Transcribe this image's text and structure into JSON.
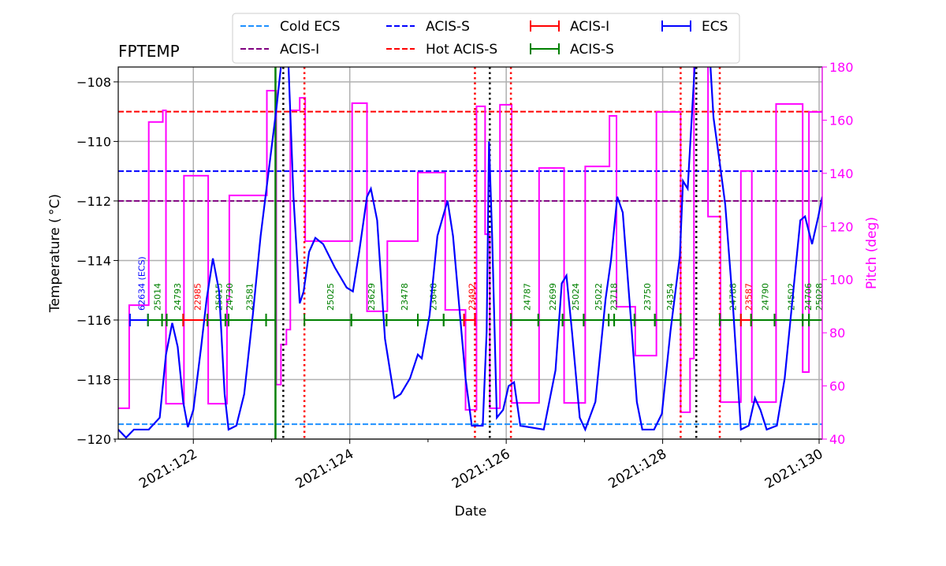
{
  "chart_data": {
    "type": "line",
    "title": "FPTEMP",
    "xlabel": "Date",
    "ylabel": "Temperature ($^\\circ$C)",
    "ylabel_display": "Temperature ( °C)",
    "y2label": "Pitch (deg)",
    "xlim": [
      121.04,
      130.04
    ],
    "ylim": [
      -120,
      -107.5
    ],
    "y2lim": [
      40,
      180
    ],
    "grid": true,
    "legend_placement": "top-center, above plot",
    "x_ticks": [
      {
        "value": 122,
        "label": "2021:122"
      },
      {
        "value": 124,
        "label": "2021:124"
      },
      {
        "value": 126,
        "label": "2021:126"
      },
      {
        "value": 128,
        "label": "2021:128"
      },
      {
        "value": 130,
        "label": "2021:130"
      }
    ],
    "x_minor_ticks": [
      121,
      123,
      125,
      127,
      129
    ],
    "y_ticks": [
      -120,
      -118,
      -116,
      -114,
      -112,
      -110,
      -108
    ],
    "y2_ticks": [
      40,
      60,
      80,
      100,
      120,
      140,
      160,
      180
    ],
    "colors": {
      "temperature": "#0000ff",
      "pitch": "#ff00ff",
      "cold_ecs": "#1e90ff",
      "acis_i_limit": "#800080",
      "acis_s_limit": "#0000ff",
      "hot_acis_s": "#ff0000",
      "acis_i_obs": "#ff0000",
      "acis_s_obs": "#008000",
      "ecs_obs": "#0000ff",
      "axis_right": "#ff00ff"
    },
    "limit_lines": [
      {
        "name": "Cold ECS",
        "value": -119.5,
        "color": "#1e90ff"
      },
      {
        "name": "ACIS-I",
        "value": -112,
        "color": "#800080"
      },
      {
        "name": "ACIS-S",
        "value": -111,
        "color": "#0000ff"
      },
      {
        "name": "Hot ACIS-S",
        "value": -109,
        "color": "#ff0000"
      }
    ],
    "legend": [
      {
        "label": "Cold ECS",
        "style": "dashed",
        "color": "#1e90ff"
      },
      {
        "label": "ACIS-I",
        "style": "dashed",
        "color": "#800080"
      },
      {
        "label": "ACIS-S",
        "style": "dashed",
        "color": "#0000ff"
      },
      {
        "label": "Hot ACIS-S",
        "style": "dashed",
        "color": "#ff0000"
      },
      {
        "label": "ACIS-I",
        "style": "errorbar",
        "color": "#ff0000"
      },
      {
        "label": "ACIS-S",
        "style": "errorbar",
        "color": "#008000"
      },
      {
        "label": "ECS",
        "style": "errorbar",
        "color": "#0000ff"
      }
    ],
    "temperature": [
      [
        121.04,
        -119.68
      ],
      [
        121.14,
        -119.95
      ],
      [
        121.24,
        -119.68
      ],
      [
        121.43,
        -119.68
      ],
      [
        121.57,
        -119.28
      ],
      [
        121.65,
        -117.16
      ],
      [
        121.73,
        -116.1
      ],
      [
        121.8,
        -116.9
      ],
      [
        121.87,
        -118.75
      ],
      [
        121.93,
        -119.6
      ],
      [
        122.0,
        -119.02
      ],
      [
        122.1,
        -116.9
      ],
      [
        122.17,
        -115.3
      ],
      [
        122.25,
        -113.93
      ],
      [
        122.33,
        -115.04
      ],
      [
        122.4,
        -118.49
      ],
      [
        122.45,
        -119.68
      ],
      [
        122.55,
        -119.55
      ],
      [
        122.65,
        -118.49
      ],
      [
        122.76,
        -115.84
      ],
      [
        122.86,
        -113.18
      ],
      [
        122.96,
        -111.06
      ],
      [
        123.06,
        -108.94
      ],
      [
        123.14,
        -107.0
      ],
      [
        123.21,
        -107.0
      ],
      [
        123.28,
        -111.86
      ],
      [
        123.36,
        -115.44
      ],
      [
        123.41,
        -115.04
      ],
      [
        123.48,
        -113.71
      ],
      [
        123.56,
        -113.24
      ],
      [
        123.66,
        -113.45
      ],
      [
        123.81,
        -114.24
      ],
      [
        123.96,
        -114.91
      ],
      [
        124.04,
        -115.04
      ],
      [
        124.12,
        -113.71
      ],
      [
        124.22,
        -111.86
      ],
      [
        124.27,
        -111.59
      ],
      [
        124.35,
        -112.65
      ],
      [
        124.45,
        -116.63
      ],
      [
        124.57,
        -118.62
      ],
      [
        124.65,
        -118.49
      ],
      [
        124.77,
        -117.96
      ],
      [
        124.87,
        -117.16
      ],
      [
        124.92,
        -117.29
      ],
      [
        125.02,
        -115.84
      ],
      [
        125.12,
        -113.18
      ],
      [
        125.25,
        -111.99
      ],
      [
        125.32,
        -113.18
      ],
      [
        125.48,
        -117.96
      ],
      [
        125.56,
        -119.55
      ],
      [
        125.7,
        -119.55
      ],
      [
        125.75,
        -116.37
      ],
      [
        125.78,
        -110.0
      ],
      [
        125.82,
        -113.18
      ],
      [
        125.88,
        -119.28
      ],
      [
        125.96,
        -119.02
      ],
      [
        126.03,
        -118.22
      ],
      [
        126.1,
        -118.09
      ],
      [
        126.18,
        -119.55
      ],
      [
        126.48,
        -119.68
      ],
      [
        126.63,
        -117.69
      ],
      [
        126.71,
        -114.77
      ],
      [
        126.77,
        -114.51
      ],
      [
        126.84,
        -116.37
      ],
      [
        126.94,
        -119.28
      ],
      [
        127.01,
        -119.68
      ],
      [
        127.14,
        -118.75
      ],
      [
        127.27,
        -115.3
      ],
      [
        127.34,
        -113.98
      ],
      [
        127.42,
        -111.86
      ],
      [
        127.49,
        -112.39
      ],
      [
        127.59,
        -115.84
      ],
      [
        127.67,
        -118.75
      ],
      [
        127.74,
        -119.68
      ],
      [
        127.89,
        -119.68
      ],
      [
        127.99,
        -119.15
      ],
      [
        128.1,
        -116.37
      ],
      [
        128.22,
        -113.85
      ],
      [
        128.26,
        -111.33
      ],
      [
        128.32,
        -111.59
      ],
      [
        128.42,
        -107.0
      ],
      [
        128.6,
        -107.0
      ],
      [
        128.65,
        -109.2
      ],
      [
        128.72,
        -110.53
      ],
      [
        128.8,
        -112.12
      ],
      [
        128.9,
        -115.57
      ],
      [
        129.0,
        -119.68
      ],
      [
        129.1,
        -119.55
      ],
      [
        129.18,
        -118.62
      ],
      [
        129.25,
        -119.02
      ],
      [
        129.33,
        -119.68
      ],
      [
        129.46,
        -119.55
      ],
      [
        129.56,
        -117.96
      ],
      [
        129.66,
        -115.3
      ],
      [
        129.76,
        -112.65
      ],
      [
        129.82,
        -112.52
      ],
      [
        129.91,
        -113.45
      ],
      [
        129.99,
        -112.52
      ],
      [
        130.04,
        -111.86
      ]
    ],
    "pitch_steps": [
      [
        121.04,
        51.6
      ],
      [
        121.18,
        90.4
      ],
      [
        121.43,
        159.3
      ],
      [
        121.61,
        163.7
      ],
      [
        121.65,
        53.3
      ],
      [
        121.88,
        139.1
      ],
      [
        122.19,
        53.3
      ],
      [
        122.43,
        92.5
      ],
      [
        122.46,
        131.7
      ],
      [
        122.94,
        171.1
      ],
      [
        123.06,
        60.5
      ],
      [
        123.12,
        75.6
      ],
      [
        123.19,
        81.2
      ],
      [
        123.24,
        163.7
      ],
      [
        123.36,
        168.4
      ],
      [
        123.43,
        114.5
      ],
      [
        124.03,
        166.4
      ],
      [
        124.22,
        88.1
      ],
      [
        124.48,
        114.5
      ],
      [
        124.87,
        140.3
      ],
      [
        125.22,
        88.6
      ],
      [
        125.48,
        51.0
      ],
      [
        125.62,
        165.2
      ],
      [
        125.73,
        117.1
      ],
      [
        125.79,
        51.6
      ],
      [
        125.92,
        165.8
      ],
      [
        126.07,
        53.6
      ],
      [
        126.42,
        142.0
      ],
      [
        126.74,
        53.6
      ],
      [
        127.01,
        142.6
      ],
      [
        127.32,
        161.6
      ],
      [
        127.41,
        89.8
      ],
      [
        127.65,
        71.4
      ],
      [
        127.92,
        163.1
      ],
      [
        128.23,
        50.1
      ],
      [
        128.35,
        70.3
      ],
      [
        128.4,
        185
      ],
      [
        128.58,
        123.7
      ],
      [
        128.74,
        53.9
      ],
      [
        129.0,
        140.9
      ],
      [
        129.14,
        53.9
      ],
      [
        129.45,
        166.1
      ],
      [
        129.79,
        65.2
      ],
      [
        129.87,
        163.1
      ],
      [
        130.04,
        163.1
      ]
    ],
    "obsid_bar_level": -116,
    "obsids": [
      {
        "start": 121.19,
        "end": 121.42,
        "obsid": "62634 (ECS)",
        "inst": "ECS"
      },
      {
        "start": 121.42,
        "end": 121.6,
        "obsid": "25014",
        "inst": "ACIS-S"
      },
      {
        "start": 121.6,
        "end": 121.66,
        "obsid": "",
        "inst": "ACIS-S"
      },
      {
        "start": 121.66,
        "end": 121.87,
        "obsid": "24793",
        "inst": "ACIS-S"
      },
      {
        "start": 121.87,
        "end": 122.18,
        "obsid": "22985",
        "inst": "ACIS-I"
      },
      {
        "start": 122.18,
        "end": 122.41,
        "obsid": "25015",
        "inst": "ACIS-S"
      },
      {
        "start": 122.41,
        "end": 122.45,
        "obsid": "24730",
        "inst": "ACIS-S"
      },
      {
        "start": 122.45,
        "end": 122.93,
        "obsid": "23581",
        "inst": "ACIS-S"
      },
      {
        "start": 122.93,
        "end": 123.05,
        "obsid": "",
        "inst": "ACIS-S"
      },
      {
        "start": 123.42,
        "end": 124.02,
        "obsid": "25025",
        "inst": "ACIS-S"
      },
      {
        "start": 124.02,
        "end": 124.47,
        "obsid": "23629",
        "inst": "ACIS-S"
      },
      {
        "start": 124.47,
        "end": 124.87,
        "obsid": "23478",
        "inst": "ACIS-S"
      },
      {
        "start": 124.87,
        "end": 125.2,
        "obsid": "23648",
        "inst": "ACIS-S"
      },
      {
        "start": 125.2,
        "end": 125.46,
        "obsid": "",
        "inst": "ACIS-S"
      },
      {
        "start": 125.46,
        "end": 125.6,
        "obsid": "23492",
        "inst": "ACIS-I"
      },
      {
        "start": 126.06,
        "end": 126.41,
        "obsid": "24787",
        "inst": "ACIS-S"
      },
      {
        "start": 126.41,
        "end": 126.72,
        "obsid": "22699",
        "inst": "ACIS-S"
      },
      {
        "start": 126.72,
        "end": 126.99,
        "obsid": "25024",
        "inst": "ACIS-S"
      },
      {
        "start": 126.99,
        "end": 127.31,
        "obsid": "25022",
        "inst": "ACIS-S"
      },
      {
        "start": 127.31,
        "end": 127.38,
        "obsid": "23718",
        "inst": "ACIS-S"
      },
      {
        "start": 127.38,
        "end": 127.64,
        "obsid": "",
        "inst": "ACIS-S"
      },
      {
        "start": 127.64,
        "end": 127.9,
        "obsid": "23750",
        "inst": "ACIS-S"
      },
      {
        "start": 127.9,
        "end": 128.23,
        "obsid": "24354",
        "inst": "ACIS-S"
      },
      {
        "start": 128.73,
        "end": 129.0,
        "obsid": "24788",
        "inst": "ACIS-S"
      },
      {
        "start": 129.0,
        "end": 129.13,
        "obsid": "23587",
        "inst": "ACIS-I"
      },
      {
        "start": 129.13,
        "end": 129.43,
        "obsid": "24790",
        "inst": "ACIS-S"
      },
      {
        "start": 129.43,
        "end": 129.79,
        "obsid": "24502",
        "inst": "ACIS-S"
      },
      {
        "start": 129.79,
        "end": 129.87,
        "obsid": "24706",
        "inst": "ACIS-S"
      },
      {
        "start": 129.87,
        "end": 130.07,
        "obsid": "25028",
        "inst": "ACIS-S"
      }
    ],
    "vertical_lines": [
      {
        "x": 123.05,
        "style": "solid",
        "color": "#008000"
      },
      {
        "x": 123.15,
        "style": "dotted",
        "color": "#000000"
      },
      {
        "x": 125.79,
        "style": "dotted",
        "color": "#000000"
      },
      {
        "x": 128.43,
        "style": "dotted",
        "color": "#000000"
      },
      {
        "x": 123.42,
        "style": "dotted",
        "color": "#ff0000"
      },
      {
        "x": 125.6,
        "style": "dotted",
        "color": "#ff0000"
      },
      {
        "x": 126.06,
        "style": "dotted",
        "color": "#ff0000"
      },
      {
        "x": 128.23,
        "style": "dotted",
        "color": "#ff0000"
      },
      {
        "x": 128.73,
        "style": "dotted",
        "color": "#ff0000"
      }
    ]
  }
}
